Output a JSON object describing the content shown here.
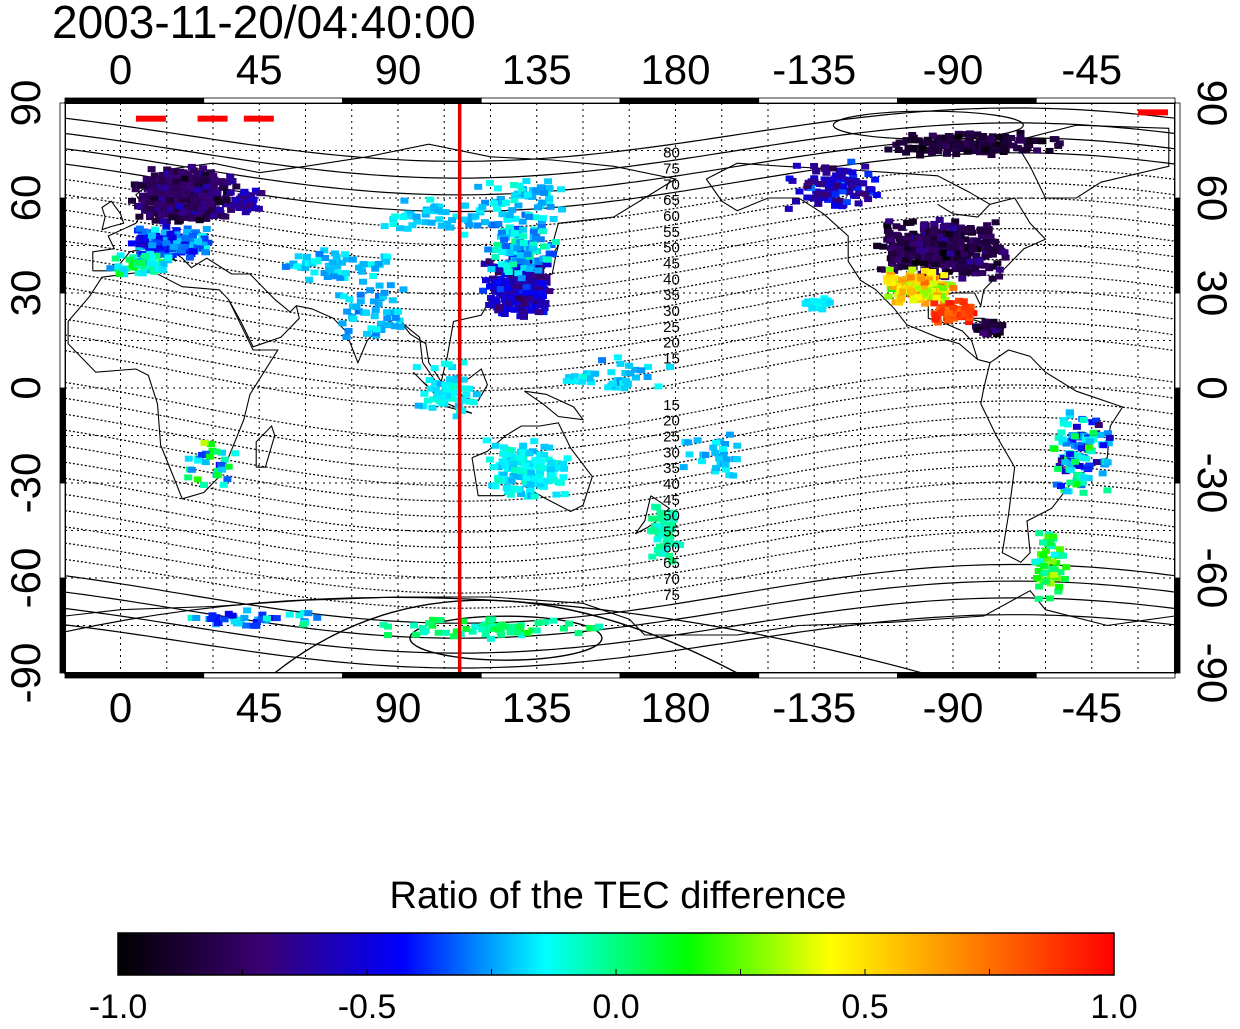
{
  "title": "2003-11-20/04:40:00",
  "map": {
    "x_ticks_top": [
      "0",
      "45",
      "90",
      "135",
      "180",
      "-135",
      "-90",
      "-45"
    ],
    "x_ticks_bottom": [
      "0",
      "45",
      "90",
      "135",
      "180",
      "-135",
      "-90",
      "-45"
    ],
    "y_ticks_left": [
      "90",
      "60",
      "30",
      "0",
      "-30",
      "-60",
      "-90"
    ],
    "y_ticks_right": [
      "90",
      "60",
      "30",
      "0",
      "-30",
      "-60",
      "-90"
    ],
    "lon_range": [
      -18,
      342
    ],
    "lat_range": [
      -90,
      90
    ],
    "grid": true,
    "marker_line_lon": 110,
    "marker_line_color": "#e00000",
    "contour_labels_north": [
      "80",
      "75",
      "70",
      "65",
      "60",
      "55",
      "50",
      "45",
      "40",
      "35",
      "30",
      "25",
      "20",
      "15"
    ],
    "contour_labels_south": [
      "15",
      "20",
      "25",
      "30",
      "35",
      "40",
      "45",
      "50",
      "55",
      "60",
      "65",
      "70",
      "75"
    ]
  },
  "colorbar": {
    "title": "Ratio of the TEC difference",
    "ticks": [
      "-1.0",
      "-0.5",
      "0.0",
      "0.5",
      "1.0"
    ],
    "range": [
      -1.0,
      1.0
    ],
    "colors": [
      "#000000",
      "#3a0070",
      "#0000ff",
      "#00ffff",
      "#00ff00",
      "#ffff00",
      "#ff8000",
      "#ff0000"
    ]
  }
}
